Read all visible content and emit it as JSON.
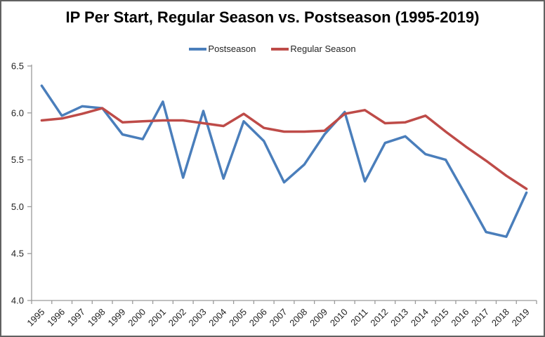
{
  "window": {
    "background": "#ffffff",
    "border_color": "#616161"
  },
  "chart_data": {
    "type": "line",
    "title": "IP Per Start, Regular Season vs. Postseason (1995-2019)",
    "x": [
      1995,
      1996,
      1997,
      1998,
      1999,
      2000,
      2001,
      2002,
      2003,
      2004,
      2005,
      2006,
      2007,
      2008,
      2009,
      2010,
      2011,
      2012,
      2013,
      2014,
      2015,
      2016,
      2017,
      2018,
      2019
    ],
    "series": [
      {
        "name": "Postseason",
        "color": "#4a7ebb",
        "values": [
          6.29,
          5.97,
          6.07,
          6.05,
          5.77,
          5.72,
          6.12,
          5.31,
          6.02,
          5.3,
          5.91,
          5.7,
          5.26,
          5.45,
          5.77,
          6.01,
          5.27,
          5.68,
          5.75,
          5.56,
          5.5,
          5.12,
          4.73,
          4.68,
          5.15
        ]
      },
      {
        "name": "Regular Season",
        "color": "#be4b48",
        "values": [
          5.92,
          5.94,
          5.99,
          6.05,
          5.9,
          5.91,
          5.92,
          5.92,
          5.89,
          5.86,
          5.99,
          5.84,
          5.8,
          5.8,
          5.81,
          5.99,
          6.03,
          5.89,
          5.9,
          5.97,
          5.8,
          5.64,
          5.49,
          5.33,
          5.19
        ]
      }
    ],
    "xlabel": "",
    "ylabel": "",
    "ylim": [
      4.0,
      6.5
    ],
    "y_ticks": [
      "6.5",
      "6.0",
      "5.5",
      "5.0",
      "4.5",
      "4.0"
    ],
    "y_tick_values": [
      6.5,
      6.0,
      5.5,
      5.0,
      4.5,
      4.0
    ],
    "grid": "off",
    "legend_position": "top-center",
    "axis_color": "#9a9a9a",
    "line_width": 3.5
  }
}
